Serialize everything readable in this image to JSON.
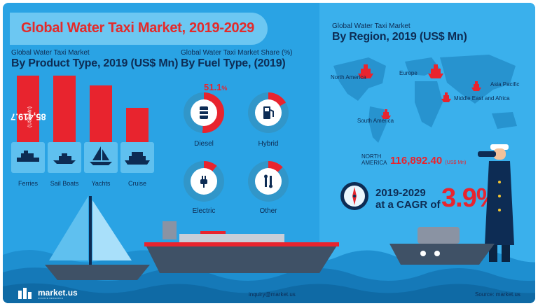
{
  "header": {
    "title": "Global Water Taxi Market, 2019-2029"
  },
  "product_section": {
    "subtitle_small": "Global Water Taxi Market",
    "subtitle_big": "By Product Type, 2019 (US$ Mn)",
    "highlight_value": "85,419.7",
    "highlight_unit": "(US$ Mn)",
    "categories": [
      "Ferries",
      "Sail Boats",
      "Yachts",
      "Cruise"
    ],
    "icons": [
      "ferry-icon",
      "sail-boat-icon",
      "yacht-icon",
      "cruise-ship-icon"
    ]
  },
  "fuel_section": {
    "subtitle_small": "Global Water Taxi Market Share (%)",
    "subtitle_big": "By Fuel Type, (2019)",
    "diesel_share": "51.1",
    "diesel_share_unit": "%",
    "types": [
      "Diesel",
      "Hybrid",
      "Electric",
      "Other"
    ],
    "icons": [
      "fuel-barrel-icon",
      "fuel-pump-icon",
      "electric-plug-icon",
      "wrench-icon"
    ]
  },
  "region_section": {
    "subtitle_small": "Global Water Taxi Market",
    "subtitle_big": "By Region, 2019 (US$ Mn)",
    "regions": {
      "north_america": "North America",
      "europe": "Europe",
      "asia_pacific": "Asia Pacific",
      "middle_east_africa": "Middle East and Africa",
      "south_america": "South America"
    },
    "highlight_region": "NORTH AMERICA",
    "highlight_value": "116,892.40",
    "highlight_unit": "(US$ Mn)"
  },
  "cagr": {
    "period": "2019-2029",
    "prefix": "at a CAGR of",
    "value": "3.9%"
  },
  "footer": {
    "logo_text": "market.us",
    "logo_tagline": "SOURCE RESEARCH",
    "email": "inquiry@market.us",
    "source": "Source: market.us"
  },
  "colors": {
    "background": "#2aa3e4",
    "accent": "#e8242e",
    "text": "#0d2c54",
    "donut_track": "#3196c9"
  }
}
